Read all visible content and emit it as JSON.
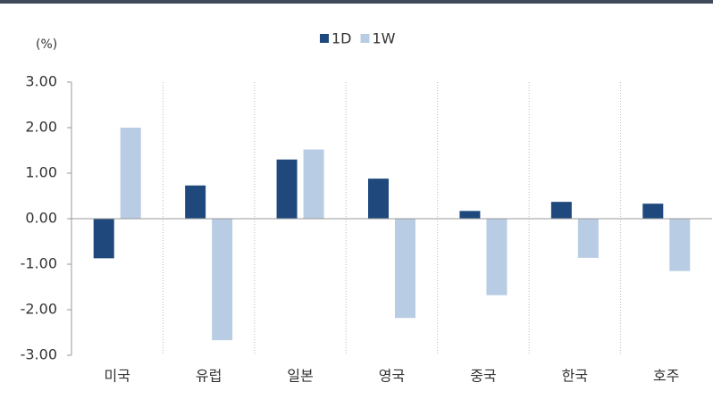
{
  "chart_data": {
    "type": "bar",
    "y_label": "(%)",
    "categories": [
      "미국",
      "유럽",
      "일본",
      "영국",
      "중국",
      "한국",
      "호주"
    ],
    "series": [
      {
        "name": "1D",
        "color": "#1f497d",
        "values": [
          -0.87,
          0.73,
          1.3,
          0.88,
          0.17,
          0.37,
          0.33
        ]
      },
      {
        "name": "1W",
        "color": "#b8cce4",
        "values": [
          2.0,
          -2.67,
          1.52,
          -2.18,
          -1.68,
          -0.86,
          -1.15
        ]
      }
    ],
    "ylim": [
      -3,
      3
    ],
    "yticks": [
      {
        "value": -3,
        "label": "-3.00"
      },
      {
        "value": -2,
        "label": "-2.00"
      },
      {
        "value": -1,
        "label": "-1.00"
      },
      {
        "value": 0,
        "label": "0.00"
      },
      {
        "value": 1,
        "label": "1.00"
      },
      {
        "value": 2,
        "label": "2.00"
      },
      {
        "value": 3,
        "label": "3.00"
      }
    ],
    "legend": "top"
  }
}
